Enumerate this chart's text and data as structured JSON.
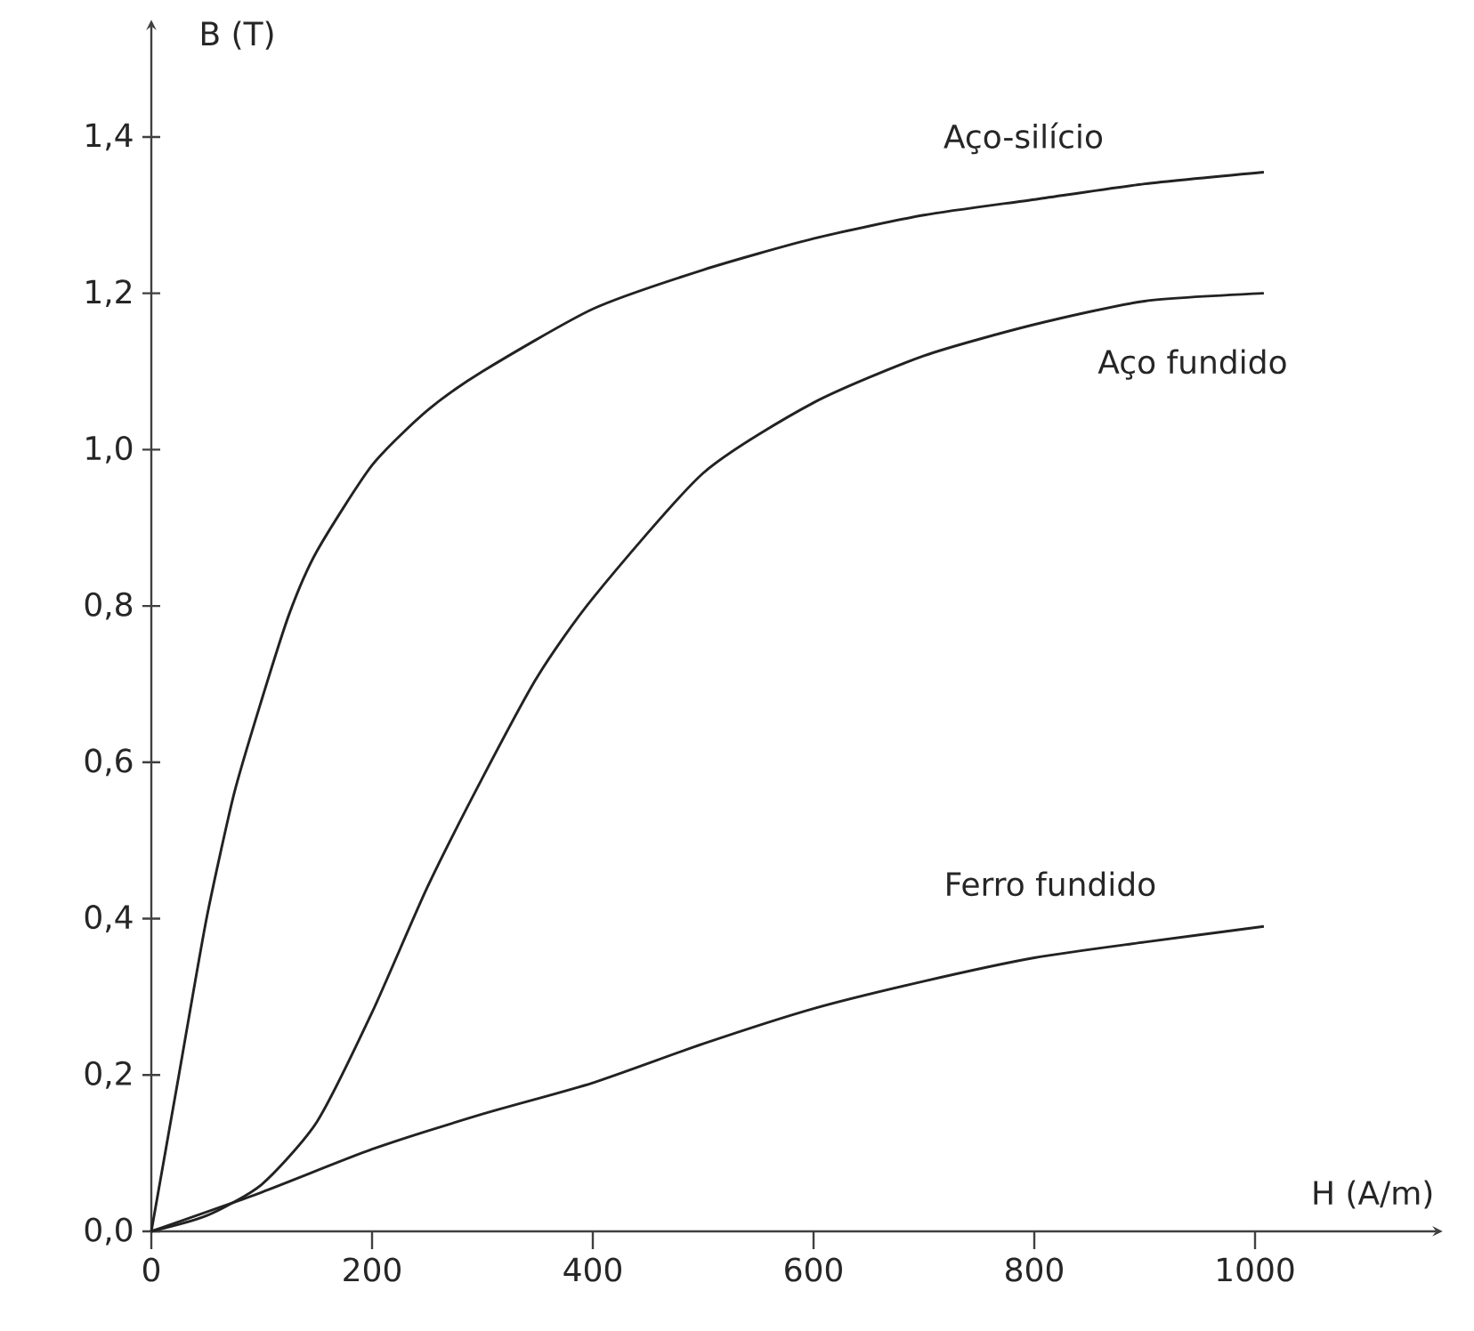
{
  "chart_data": {
    "type": "line",
    "xlabel": "H (A/m)",
    "ylabel": "B (T)",
    "xlim": [
      0,
      1170
    ],
    "ylim": [
      0,
      1.55
    ],
    "xticks": [
      0,
      200,
      400,
      600,
      800,
      1000
    ],
    "yticks": [
      {
        "value": 0,
        "label": "0,0"
      },
      {
        "value": 0.2,
        "label": "0,2"
      },
      {
        "value": 0.4,
        "label": "0,4"
      },
      {
        "value": 0.6,
        "label": "0,6"
      },
      {
        "value": 0.8,
        "label": "0,8"
      },
      {
        "value": 1.0,
        "label": "1,0"
      },
      {
        "value": 1.2,
        "label": "1,2"
      },
      {
        "value": 1.4,
        "label": "1,4"
      }
    ],
    "grid": false,
    "marker": "none",
    "line_style": "solid",
    "series": [
      {
        "name": "Aço-silício",
        "color": "#222222",
        "x": [
          0,
          25,
          50,
          75,
          100,
          125,
          150,
          200,
          250,
          300,
          400,
          500,
          600,
          700,
          800,
          900,
          1008
        ],
        "values": [
          0,
          0.2,
          0.4,
          0.56,
          0.68,
          0.79,
          0.87,
          0.98,
          1.05,
          1.1,
          1.18,
          1.23,
          1.27,
          1.3,
          1.32,
          1.34,
          1.355
        ]
      },
      {
        "name": "Aço fundido",
        "color": "#222222",
        "x": [
          0,
          50,
          100,
          150,
          200,
          250,
          300,
          350,
          400,
          500,
          600,
          700,
          800,
          900,
          1008
        ],
        "values": [
          0,
          0.02,
          0.06,
          0.14,
          0.28,
          0.44,
          0.58,
          0.71,
          0.81,
          0.97,
          1.06,
          1.12,
          1.16,
          1.19,
          1.2
        ]
      },
      {
        "name": "Ferro fundido",
        "color": "#222222",
        "x": [
          0,
          100,
          200,
          300,
          400,
          500,
          600,
          700,
          800,
          900,
          1008
        ],
        "values": [
          0,
          0.05,
          0.105,
          0.15,
          0.19,
          0.24,
          0.285,
          0.32,
          0.35,
          0.37,
          0.39
        ]
      }
    ]
  }
}
